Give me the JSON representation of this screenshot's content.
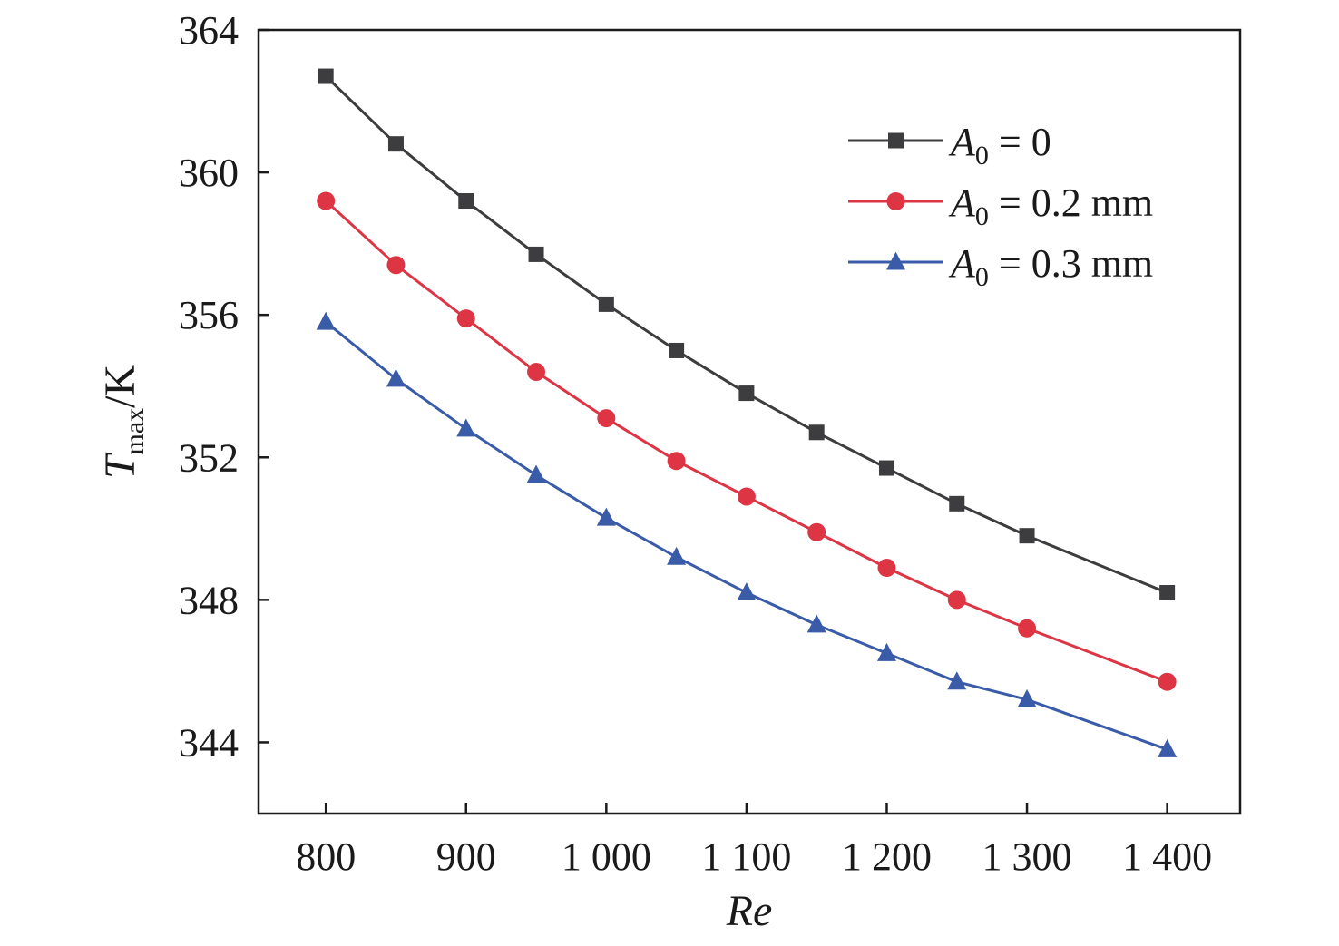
{
  "chart_data": {
    "type": "line",
    "x": [
      800,
      850,
      900,
      950,
      1000,
      1050,
      1100,
      1150,
      1200,
      1250,
      1300,
      1400
    ],
    "series": [
      {
        "name": "A0 = 0",
        "name_parts": {
          "symbol": "A",
          "subscript": "0",
          "rest": " = 0"
        },
        "color": "#3d3d3f",
        "marker": "square",
        "values": [
          362.7,
          360.8,
          359.2,
          357.7,
          356.3,
          355.0,
          353.8,
          352.7,
          351.7,
          350.7,
          349.8,
          348.2
        ]
      },
      {
        "name": "A0 = 0.2 mm",
        "name_parts": {
          "symbol": "A",
          "subscript": "0",
          "rest": " = 0.2 mm"
        },
        "color": "#de3545",
        "marker": "circle",
        "values": [
          359.2,
          357.4,
          355.9,
          354.4,
          353.1,
          351.9,
          350.9,
          349.9,
          348.9,
          348.0,
          347.2,
          345.7
        ]
      },
      {
        "name": "A0 = 0.3 mm",
        "name_parts": {
          "symbol": "A",
          "subscript": "0",
          "rest": " = 0.3 mm"
        },
        "color": "#3a5ca8",
        "marker": "triangle",
        "values": [
          355.8,
          354.2,
          352.8,
          351.5,
          350.3,
          349.2,
          348.2,
          347.3,
          346.5,
          345.7,
          345.2,
          343.8
        ]
      }
    ],
    "xlabel": "Re",
    "ylabel_parts": {
      "symbol": "T",
      "subscript": "max",
      "rest": "/K"
    },
    "xlim": [
      752,
      1452
    ],
    "ylim": [
      342,
      364
    ],
    "xticks": [
      800,
      900,
      1000,
      1100,
      1200,
      1300,
      1400
    ],
    "xtick_labels": [
      "800",
      "900",
      "1 000",
      "1 100",
      "1 200",
      "1 300",
      "1 400"
    ],
    "yticks": [
      344,
      348,
      352,
      356,
      360,
      364
    ],
    "ytick_labels": [
      "344",
      "348",
      "352",
      "356",
      "360",
      "364"
    ],
    "grid": false,
    "legend_position": "top-right"
  }
}
